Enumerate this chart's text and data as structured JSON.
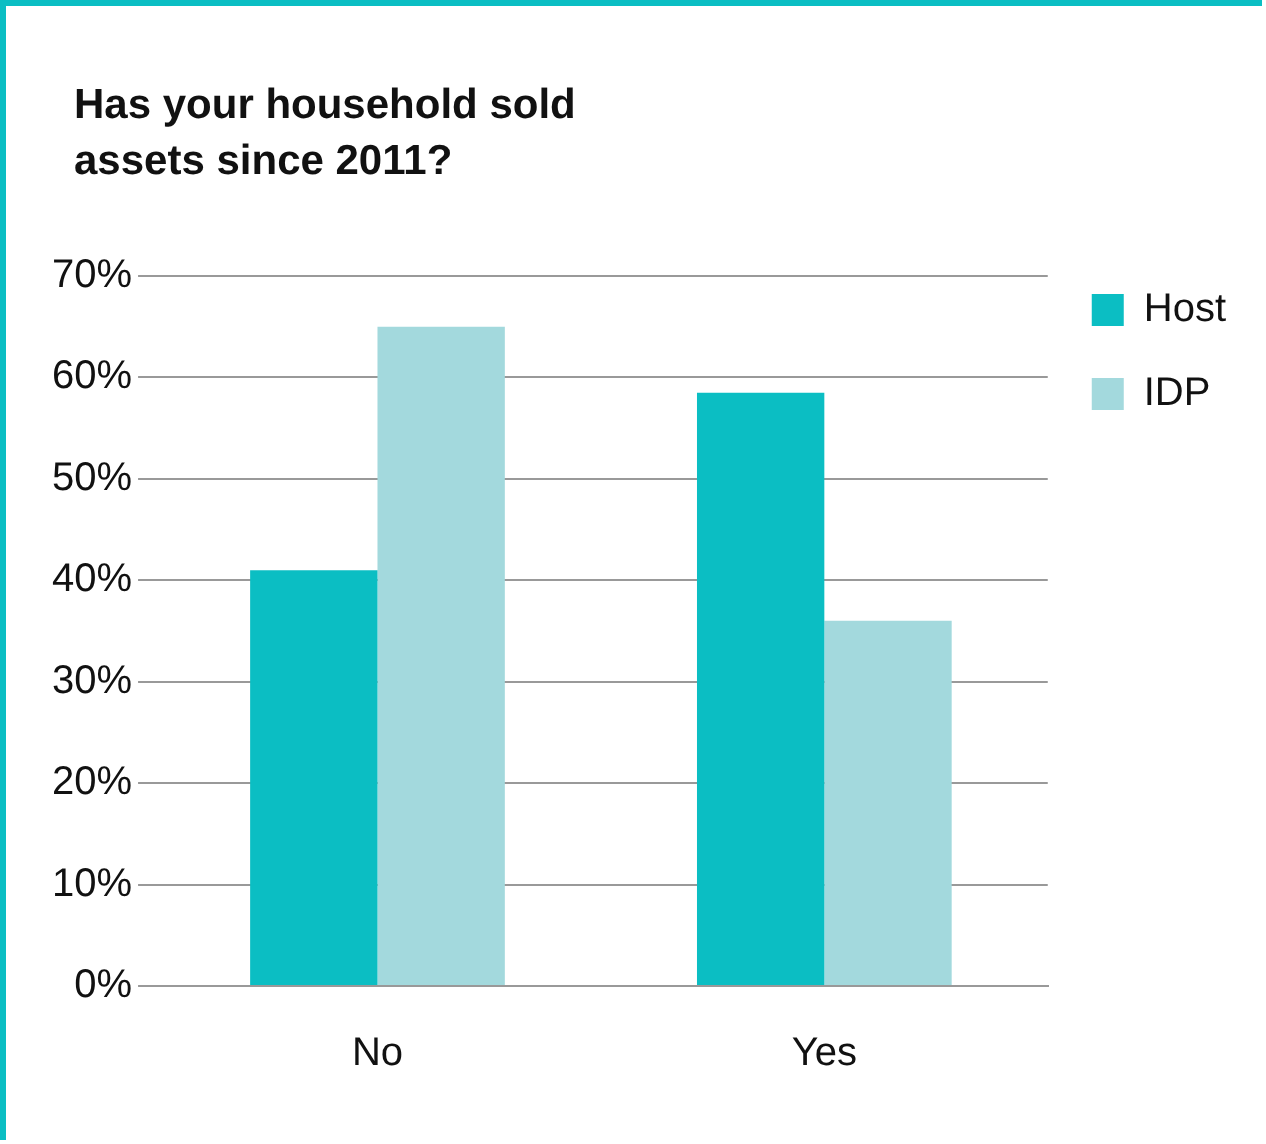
{
  "chart_data": {
    "type": "bar",
    "title": "Has your household sold assets since 2011?",
    "categories": [
      "No",
      "Yes"
    ],
    "series": [
      {
        "name": "Host",
        "color": "#0bbec3",
        "values": [
          41,
          58.5
        ]
      },
      {
        "name": "IDP",
        "color": "#a3d9dd",
        "values": [
          65,
          36
        ]
      }
    ],
    "ylim": [
      0,
      70
    ],
    "yticks": [
      {
        "value": 0,
        "label": "0%"
      },
      {
        "value": 10,
        "label": "10%"
      },
      {
        "value": 20,
        "label": "20%"
      },
      {
        "value": 30,
        "label": "30%"
      },
      {
        "value": 40,
        "label": "40%"
      },
      {
        "value": 50,
        "label": "50%"
      },
      {
        "value": 60,
        "label": "60%"
      },
      {
        "value": 70,
        "label": "70%"
      }
    ],
    "grid": "y",
    "legend": "right"
  }
}
